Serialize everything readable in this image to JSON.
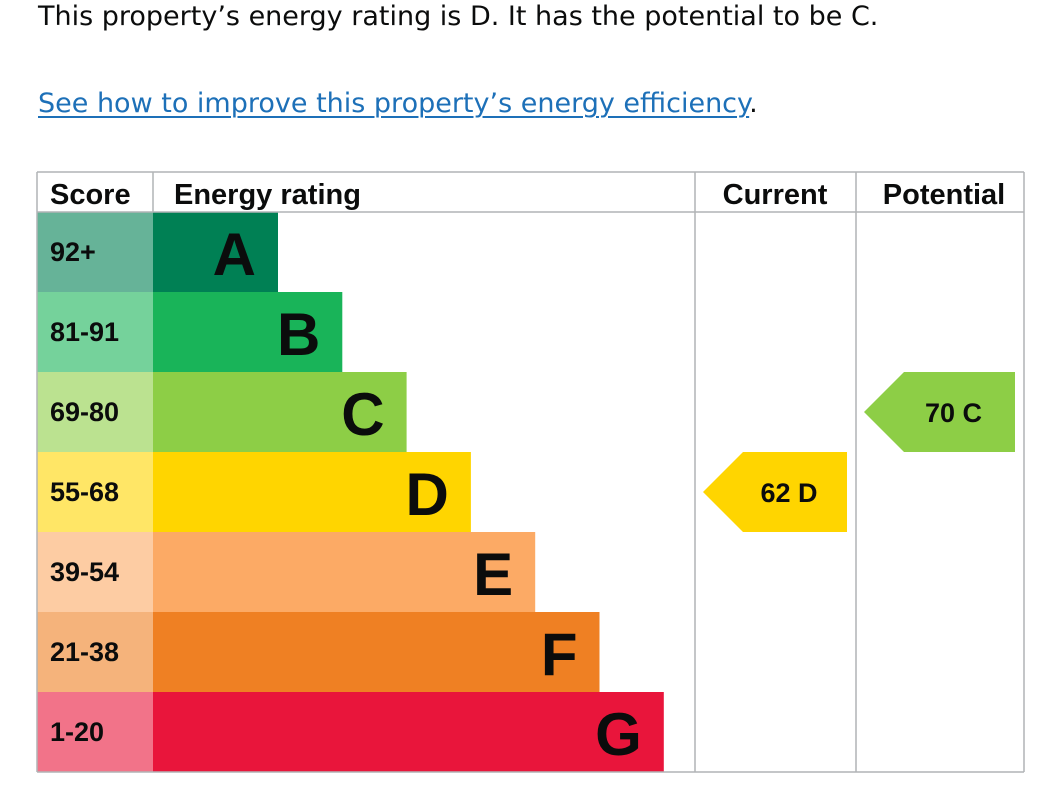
{
  "intro": {
    "text": "This property’s energy rating is D. It has the potential to be C."
  },
  "improve": {
    "link_text": "See how to improve this property’s energy efficiency",
    "suffix": "."
  },
  "chart_data": {
    "type": "table",
    "headers": {
      "score": "Score",
      "rating": "Energy rating",
      "current": "Current",
      "potential": "Potential"
    },
    "bands": [
      {
        "letter": "A",
        "range": "92+",
        "color": "#008054",
        "score_color": "#66b398"
      },
      {
        "letter": "B",
        "range": "81-91",
        "color": "#19b459",
        "score_color": "#75d29b"
      },
      {
        "letter": "C",
        "range": "69-80",
        "color": "#8dce46",
        "score_color": "#bbe290"
      },
      {
        "letter": "D",
        "range": "55-68",
        "color": "#ffd500",
        "score_color": "#ffe666"
      },
      {
        "letter": "E",
        "range": "39-54",
        "color": "#fcaa65",
        "score_color": "#fdcca3"
      },
      {
        "letter": "F",
        "range": "21-38",
        "color": "#ef8023",
        "score_color": "#f5b37b"
      },
      {
        "letter": "G",
        "range": "1-20",
        "color": "#e9153b",
        "score_color": "#f27389"
      }
    ],
    "current": {
      "score": 62,
      "letter": "D",
      "label": "62  D"
    },
    "potential": {
      "score": 70,
      "letter": "C",
      "label": "70  C"
    }
  }
}
